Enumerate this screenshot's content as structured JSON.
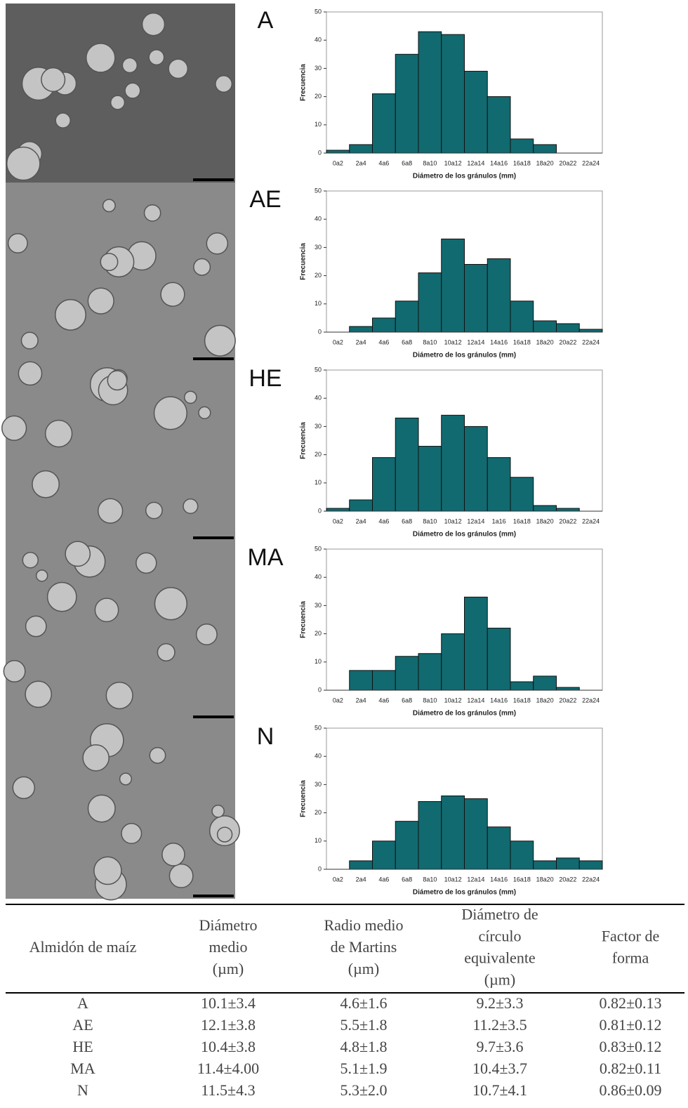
{
  "chart_data": [
    {
      "type": "bar",
      "title": "A",
      "xlabel": "Diámetro de los gránulos (mm)",
      "ylabel": "Frecuencia",
      "color": "#116a70",
      "categories": [
        "0a2",
        "2a4",
        "4a6",
        "6a8",
        "8a10",
        "10a12",
        "12a14",
        "14a16",
        "16a18",
        "18a20",
        "20a22",
        "22a24"
      ],
      "values": [
        1,
        3,
        21,
        35,
        43,
        42,
        29,
        20,
        5,
        3,
        0,
        0
      ],
      "ylim": [
        0,
        50
      ],
      "yticks": [
        0,
        10,
        20,
        30,
        40,
        50
      ]
    },
    {
      "type": "bar",
      "title": "AE",
      "xlabel": "Diámetro de los gránulos (mm)",
      "ylabel": "Frecuencia",
      "color": "#116a70",
      "categories": [
        "0a2",
        "2a4",
        "4a6",
        "6a8",
        "8a10",
        "10a12",
        "12a14",
        "14a16",
        "16a18",
        "18a20",
        "20a22",
        "22a24"
      ],
      "values": [
        0,
        2,
        5,
        11,
        21,
        33,
        24,
        26,
        11,
        4,
        3,
        1
      ],
      "ylim": [
        0,
        50
      ],
      "yticks": [
        0,
        10,
        20,
        30,
        40,
        50
      ]
    },
    {
      "type": "bar",
      "title": "HE",
      "xlabel": "Diámetro de los gránulos (mm)",
      "ylabel": "Frecuencia",
      "color": "#116a70",
      "categories": [
        "0a2",
        "2a4",
        "4a6",
        "6a8",
        "8a10",
        "10a12",
        "12a14",
        "1a16",
        "16a18",
        "18a20",
        "20a22",
        "22a24"
      ],
      "values": [
        1,
        4,
        19,
        33,
        23,
        34,
        30,
        19,
        12,
        2,
        1,
        0
      ],
      "ylim": [
        0,
        50
      ],
      "yticks": [
        0,
        10,
        20,
        30,
        40,
        50
      ]
    },
    {
      "type": "bar",
      "title": "MA",
      "xlabel": "Diámetro de los gránulos (mm)",
      "ylabel": "Frecuencia",
      "color": "#116a70",
      "categories": [
        "0a2",
        "2a4",
        "4a6",
        "6a8",
        "8a10",
        "10a12",
        "12a14",
        "14a16",
        "16a18",
        "18a20",
        "20a22",
        "22a24"
      ],
      "values": [
        0,
        7,
        7,
        12,
        13,
        20,
        33,
        22,
        3,
        5,
        1,
        0
      ],
      "ylim": [
        0,
        50
      ],
      "yticks": [
        0,
        10,
        20,
        30,
        40,
        50
      ]
    },
    {
      "type": "bar",
      "title": "N",
      "xlabel": "Diámetro de los gránulos (mm)",
      "ylabel": "Frecuencia",
      "color": "#116a70",
      "categories": [
        "0a2",
        "2a4",
        "4a6",
        "6a8",
        "8a10",
        "10a12",
        "12a14",
        "14a16",
        "16a18",
        "18a20",
        "20a22",
        "22a24"
      ],
      "values": [
        0,
        3,
        10,
        17,
        24,
        26,
        25,
        15,
        10,
        3,
        4,
        3
      ],
      "ylim": [
        0,
        50
      ],
      "yticks": [
        0,
        10,
        20,
        30,
        40,
        50
      ]
    }
  ],
  "table": {
    "header": [
      [
        "Almidón de maíz"
      ],
      [
        "Diámetro",
        "medio",
        "(µm)"
      ],
      [
        "Radio medio",
        "de Martins",
        "(µm)"
      ],
      [
        "Diámetro de",
        "círculo",
        "equivalente",
        "(µm)"
      ],
      [
        "Factor de",
        "forma"
      ]
    ],
    "rows": [
      [
        "A",
        "10.1±3.4",
        "4.6±1.6",
        "9.2±3.3",
        "0.82±0.13"
      ],
      [
        "AE",
        "12.1±3.8",
        "5.5±1.8",
        "11.2±3.5",
        "0.81±0.12"
      ],
      [
        "HE",
        "10.4±3.8",
        "4.8±1.8",
        "9.7±3.6",
        "0.83±0.12"
      ],
      [
        "MA",
        "11.4±4.00",
        "5.1±1.9",
        "10.4±3.7",
        "0.82±0.11"
      ],
      [
        "N",
        "11.5±4.3",
        "5.3±2.0",
        "10.7±4.1",
        "0.86±0.09"
      ]
    ]
  }
}
